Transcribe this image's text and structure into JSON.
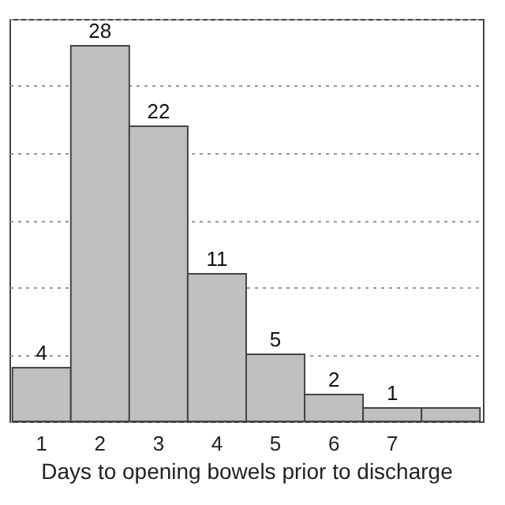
{
  "chart_data": {
    "type": "bar",
    "xlabel": "Days to opening bowels prior to discharge",
    "categories": [
      "1",
      "2",
      "3",
      "4",
      "5",
      "6",
      "7",
      null
    ],
    "values": [
      4,
      28,
      22,
      11,
      5,
      2,
      1,
      1
    ],
    "value_labels": [
      "4",
      "28",
      "22",
      "11",
      "5",
      "2",
      "1",
      null
    ],
    "color": "#c0c0c0",
    "ylim": [
      0,
      30
    ],
    "yticks": [
      {
        "value": 0,
        "label": null
      },
      {
        "value": 5,
        "label": null
      },
      {
        "value": 10,
        "label": null
      },
      {
        "value": 15,
        "label": null
      },
      {
        "value": 20,
        "label": null
      },
      {
        "value": 25,
        "label": null
      },
      {
        "value": 30,
        "label": null
      }
    ],
    "grid": "y",
    "tick_labels": "x"
  }
}
